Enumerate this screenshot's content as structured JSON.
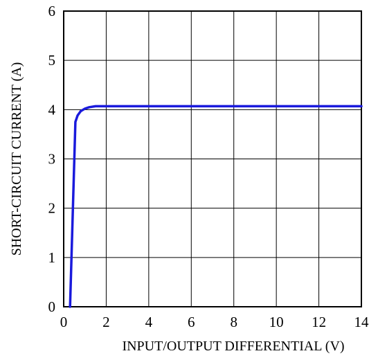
{
  "chart_data": {
    "type": "line",
    "title": "",
    "xlabel": "INPUT/OUTPUT DIFFERENTIAL (V)",
    "ylabel": "SHORT-CIRCUIT CURRENT (A)",
    "xlim": [
      0,
      14
    ],
    "ylim": [
      0,
      6
    ],
    "xticks": [
      "0",
      "2",
      "4",
      "6",
      "8",
      "10",
      "12",
      "14"
    ],
    "yticks": [
      "0",
      "1",
      "2",
      "3",
      "4",
      "5",
      "6"
    ],
    "grid": true,
    "line_color": "#1a1adc",
    "series": [
      {
        "x": [
          0.3,
          0.55,
          0.65,
          0.8,
          1.0,
          1.2,
          1.5,
          2.0,
          4.0,
          6.0,
          8.0,
          10.0,
          12.0,
          14.0
        ],
        "y": [
          0.0,
          3.75,
          3.88,
          3.97,
          4.02,
          4.05,
          4.07,
          4.07,
          4.07,
          4.07,
          4.07,
          4.07,
          4.07,
          4.07
        ]
      }
    ]
  }
}
